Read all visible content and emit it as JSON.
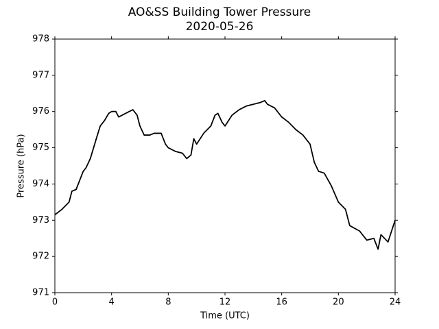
{
  "chart_data": {
    "type": "line",
    "title": "AO&SS Building Tower Pressure",
    "subtitle": "2020-05-26",
    "xlabel": "Time (UTC)",
    "ylabel": "Pressure (hPa)",
    "x": [
      0,
      0.5,
      1,
      1.2,
      1.5,
      2,
      2.2,
      2.5,
      3,
      3.2,
      3.5,
      3.8,
      4,
      4.3,
      4.5,
      5,
      5.5,
      5.8,
      6,
      6.3,
      6.7,
      7,
      7.5,
      7.8,
      8,
      8.5,
      9,
      9.3,
      9.6,
      9.8,
      10,
      10.5,
      11,
      11.3,
      11.5,
      11.8,
      12,
      12.5,
      13,
      13.5,
      14,
      14.5,
      14.8,
      15,
      15.5,
      16,
      16.5,
      17,
      17.5,
      18,
      18.3,
      18.6,
      19,
      19.5,
      20,
      20.5,
      20.8,
      21.5,
      22,
      22.5,
      22.8,
      23,
      23.5,
      24
    ],
    "values": [
      973.15,
      973.3,
      973.5,
      973.8,
      973.85,
      974.35,
      974.45,
      974.7,
      975.35,
      975.6,
      975.75,
      975.95,
      976.0,
      976.0,
      975.85,
      975.95,
      976.05,
      975.9,
      975.6,
      975.35,
      975.35,
      975.4,
      975.4,
      975.1,
      975.0,
      974.9,
      974.85,
      974.7,
      974.8,
      975.25,
      975.1,
      975.4,
      975.6,
      975.9,
      975.95,
      975.7,
      975.6,
      975.9,
      976.05,
      976.15,
      976.2,
      976.25,
      976.3,
      976.2,
      976.1,
      975.85,
      975.7,
      975.5,
      975.35,
      975.1,
      974.6,
      974.35,
      974.3,
      973.95,
      973.5,
      973.3,
      972.85,
      972.7,
      972.45,
      972.5,
      972.2,
      972.6,
      972.4,
      973.0
    ],
    "color": "#000000",
    "xlim": [
      0,
      24
    ],
    "xticks": [
      0,
      4,
      8,
      12,
      16,
      20,
      24
    ],
    "ylim": [
      971,
      978
    ],
    "yticks": [
      971,
      972,
      973,
      974,
      975,
      976,
      977,
      978
    ],
    "grid": false
  }
}
